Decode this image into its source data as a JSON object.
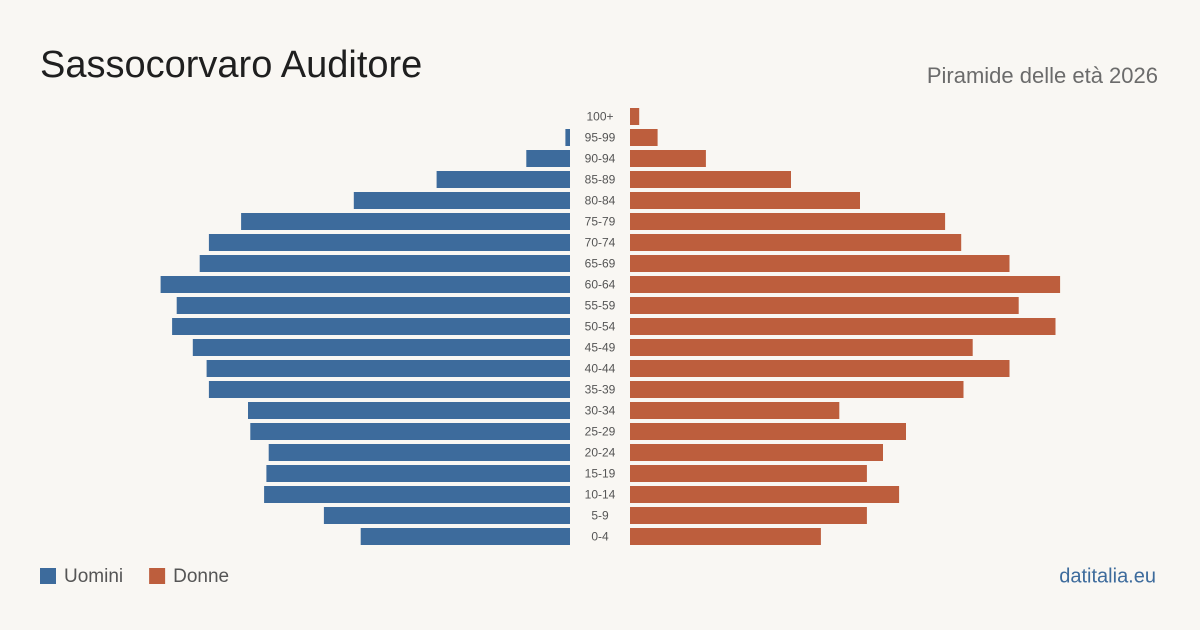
{
  "chart_data": {
    "type": "pyramid",
    "title": "Sassocorvaro Auditore",
    "subtitle": "Piramide delle età 2026",
    "source": "datitalia.eu",
    "categories": [
      "100+",
      "95-99",
      "90-94",
      "85-89",
      "80-84",
      "75-79",
      "70-74",
      "65-69",
      "60-64",
      "55-59",
      "50-54",
      "45-49",
      "40-44",
      "35-39",
      "30-34",
      "25-29",
      "20-24",
      "15-19",
      "10-14",
      "5-9",
      "0-4"
    ],
    "xlim": [
      0,
      190
    ],
    "series": [
      {
        "name": "Uomini",
        "color": "#3d6b9c",
        "values": [
          0,
          2,
          19,
          58,
          94,
          143,
          157,
          161,
          178,
          171,
          173,
          164,
          158,
          157,
          140,
          139,
          131,
          132,
          133,
          107,
          91
        ]
      },
      {
        "name": "Donne",
        "color": "#bd5e3d",
        "values": [
          4,
          12,
          33,
          70,
          100,
          137,
          144,
          165,
          187,
          169,
          185,
          149,
          165,
          145,
          91,
          120,
          110,
          103,
          117,
          103,
          83
        ]
      }
    ]
  }
}
